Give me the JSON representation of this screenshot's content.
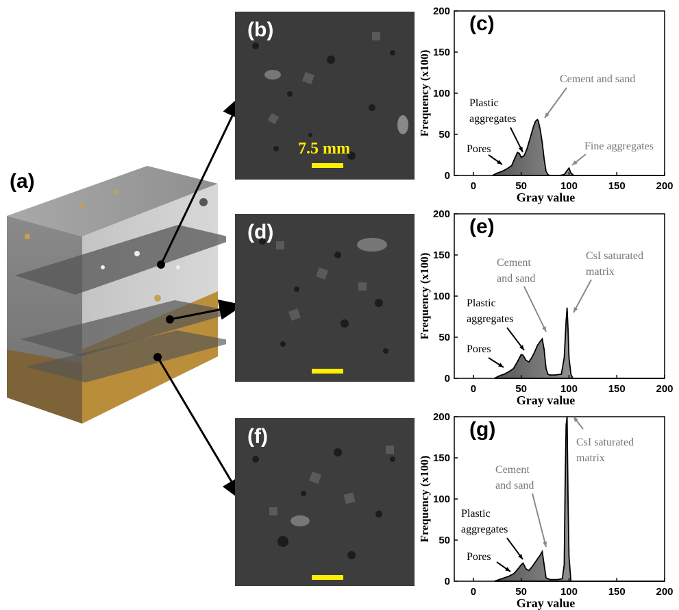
{
  "panels": {
    "a": "(a)",
    "b": "(b)",
    "c": "(c)",
    "d": "(d)",
    "e": "(e)",
    "f": "(f)",
    "g": "(g)"
  },
  "scale_bar_text": "7.5 mm",
  "colors": {
    "scale_bar": "#ffee00",
    "annotation_gray": "#777777",
    "fill_dark": "#555555",
    "fill_light": "#d8d8d8"
  },
  "chart_data": [
    {
      "type": "area",
      "panel": "(c)",
      "xlabel": "Gray value",
      "ylabel": "Frequency (x100)",
      "xlim": [
        -20,
        200
      ],
      "ylim": [
        0,
        200
      ],
      "xticks": [
        0,
        50,
        100,
        150,
        200
      ],
      "yticks": [
        0,
        50,
        100,
        150,
        200
      ],
      "x": [
        20,
        25,
        30,
        35,
        40,
        43,
        46,
        48,
        50,
        53,
        56,
        58,
        60,
        63,
        65,
        67,
        68,
        70,
        72,
        74,
        76,
        78,
        80,
        90,
        95,
        98,
        100,
        102,
        105,
        200
      ],
      "y": [
        0,
        3,
        5,
        8,
        12,
        20,
        28,
        27,
        22,
        24,
        32,
        40,
        48,
        60,
        66,
        68,
        66,
        55,
        40,
        20,
        5,
        1,
        0,
        0,
        1,
        6,
        9,
        3,
        0,
        0
      ],
      "annotations": [
        {
          "text": "Pores",
          "color": "black"
        },
        {
          "text": "Plastic",
          "text2": "aggregates",
          "color": "black"
        },
        {
          "text": "Cement and sand",
          "color": "gray"
        },
        {
          "text": "Fine aggregates",
          "color": "gray"
        }
      ]
    },
    {
      "type": "area",
      "panel": "(e)",
      "xlabel": "Gray value",
      "ylabel": "Frequency (x100)",
      "xlim": [
        -20,
        200
      ],
      "ylim": [
        0,
        200
      ],
      "xticks": [
        0,
        50,
        100,
        150,
        200
      ],
      "yticks": [
        0,
        50,
        100,
        150,
        200
      ],
      "x": [
        22,
        27,
        32,
        37,
        42,
        46,
        50,
        52,
        55,
        58,
        61,
        64,
        67,
        70,
        72,
        74,
        76,
        78,
        80,
        85,
        92,
        95,
        97,
        98,
        99,
        100,
        102,
        104,
        200
      ],
      "y": [
        0,
        3,
        5,
        8,
        12,
        20,
        29,
        28,
        22,
        20,
        25,
        32,
        40,
        45,
        48,
        35,
        12,
        5,
        4,
        4,
        5,
        25,
        70,
        86,
        60,
        25,
        5,
        0,
        0
      ],
      "annotations": [
        {
          "text": "Pores",
          "color": "black"
        },
        {
          "text": "Plastic",
          "text2": "aggregates",
          "color": "black"
        },
        {
          "text": "Cement",
          "text2": "and sand",
          "color": "gray"
        },
        {
          "text": "CsI saturated",
          "text2": "matrix",
          "color": "gray"
        }
      ]
    },
    {
      "type": "area",
      "panel": "(g)",
      "xlabel": "Gray value",
      "ylabel": "Frequency (x100)",
      "xlim": [
        -20,
        200
      ],
      "ylim": [
        0,
        200
      ],
      "xticks": [
        0,
        50,
        100,
        150,
        200
      ],
      "yticks": [
        0,
        50,
        100,
        150,
        200
      ],
      "x": [
        22,
        27,
        32,
        37,
        42,
        46,
        50,
        52,
        55,
        58,
        61,
        64,
        67,
        70,
        72,
        74,
        76,
        80,
        88,
        93,
        95,
        96,
        97,
        98,
        99,
        100,
        102,
        200
      ],
      "y": [
        0,
        2,
        4,
        6,
        9,
        14,
        20,
        22,
        15,
        13,
        17,
        22,
        27,
        32,
        36,
        20,
        4,
        2,
        2,
        3,
        20,
        120,
        190,
        200,
        100,
        30,
        0,
        0
      ],
      "annotations": [
        {
          "text": "Pores",
          "color": "black"
        },
        {
          "text": "Plastic",
          "text2": "aggregates",
          "color": "black"
        },
        {
          "text": "Cement",
          "text2": "and sand",
          "color": "gray"
        },
        {
          "text": "CsI saturated",
          "text2": "matrix",
          "color": "gray"
        }
      ]
    }
  ]
}
